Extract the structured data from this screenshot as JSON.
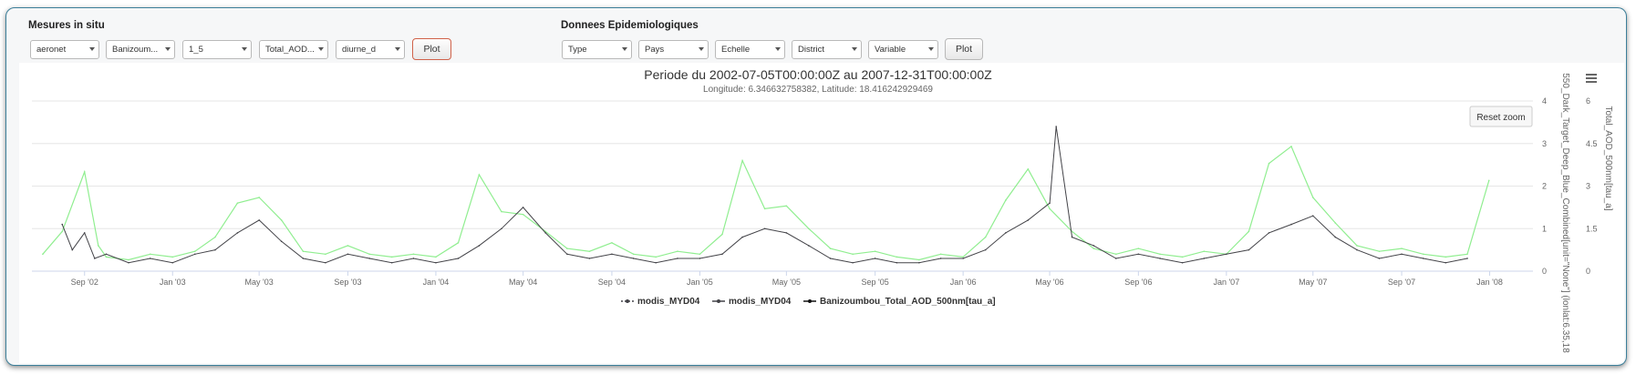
{
  "sections": {
    "left_title": "Mesures in situ",
    "right_title": "Donnees Epidemiologiques"
  },
  "left_controls": {
    "source": "aeronet",
    "site": "Banizoum...",
    "level": "1_5",
    "variable": "Total_AOD...",
    "frequency": "diurne_d",
    "plot_label": "Plot"
  },
  "right_controls": {
    "type": "Type",
    "pays": "Pays",
    "echelle": "Echelle",
    "district": "District",
    "variable": "Variable",
    "plot_label": "Plot"
  },
  "chart": {
    "menu_icon": "hamburger-menu-icon",
    "reset_zoom": "Reset zoom"
  },
  "colors": {
    "green_series": "#90ee90",
    "dark_series": "#434348",
    "border": "#3b7f9a"
  },
  "chart_data": {
    "type": "line",
    "title": "Periode du 2002-07-05T00:00:00Z au 2007-12-31T00:00:00Z",
    "subtitle": "Longitude: 6.346632758382, Latitude: 18.416242929469",
    "x_range": [
      "2002-07-05",
      "2007-12-31"
    ],
    "x_ticks": [
      "Sep '02",
      "Jan '03",
      "May '03",
      "Sep '03",
      "Jan '04",
      "May '04",
      "Sep '04",
      "Jan '05",
      "May '05",
      "Sep '05",
      "Jan '06",
      "May '06",
      "Sep '06",
      "Jan '07",
      "May '07",
      "Sep '07",
      "Jan '08"
    ],
    "y_left": {
      "ylim": [
        0,
        4
      ],
      "ticks": [
        "0",
        "1",
        "2",
        "3",
        "4"
      ],
      "label": "550_Dark_Target_Deep_Blue_Combined[unit=\"None\"] (lonlat:6.35,18"
    },
    "y_right": {
      "ylim": [
        0,
        6
      ],
      "ticks": [
        "0",
        "1.5",
        "3",
        "4.5",
        "6"
      ],
      "label": "Total_AOD_500nm[tau_a]"
    },
    "legend_position": "bottom-center",
    "series": [
      {
        "name": "modis_MYD04",
        "axis": "left",
        "color": "#434348",
        "x": [
          "2002-08-01",
          "2002-08-15",
          "2002-09-01",
          "2002-09-15",
          "2002-10-01",
          "2002-11-01",
          "2002-12-01",
          "2003-01-01",
          "2003-02-01",
          "2003-03-01",
          "2003-04-01",
          "2003-05-01",
          "2003-06-01",
          "2003-07-01",
          "2003-08-01",
          "2003-09-01",
          "2003-10-01",
          "2003-11-01",
          "2003-12-01",
          "2004-01-01",
          "2004-02-01",
          "2004-03-01",
          "2004-04-01",
          "2004-05-01",
          "2004-06-01",
          "2004-07-01",
          "2004-08-01",
          "2004-09-01",
          "2004-10-01",
          "2004-11-01",
          "2004-12-01",
          "2005-01-01",
          "2005-02-01",
          "2005-03-01",
          "2005-04-01",
          "2005-05-01",
          "2005-06-01",
          "2005-07-01",
          "2005-08-01",
          "2005-09-01",
          "2005-10-01",
          "2005-11-01",
          "2005-12-01",
          "2006-01-01",
          "2006-02-01",
          "2006-03-01",
          "2006-04-01",
          "2006-05-01",
          "2006-05-10",
          "2006-06-01",
          "2006-07-01",
          "2006-08-01",
          "2006-09-01",
          "2006-10-01",
          "2006-11-01",
          "2006-12-01",
          "2007-01-01",
          "2007-02-01",
          "2007-03-01",
          "2007-04-01",
          "2007-05-01",
          "2007-06-01",
          "2007-07-01",
          "2007-08-01",
          "2007-09-01",
          "2007-10-01",
          "2007-11-01",
          "2007-12-01"
        ],
        "values": [
          1.1,
          0.5,
          0.9,
          0.3,
          0.4,
          0.2,
          0.3,
          0.2,
          0.4,
          0.5,
          0.9,
          1.2,
          0.7,
          0.3,
          0.2,
          0.4,
          0.3,
          0.2,
          0.3,
          0.2,
          0.3,
          0.6,
          1.0,
          1.5,
          0.9,
          0.4,
          0.3,
          0.4,
          0.3,
          0.2,
          0.3,
          0.3,
          0.4,
          0.8,
          1.0,
          0.9,
          0.6,
          0.3,
          0.2,
          0.3,
          0.2,
          0.2,
          0.3,
          0.3,
          0.5,
          0.9,
          1.2,
          1.6,
          3.4,
          0.8,
          0.6,
          0.3,
          0.4,
          0.3,
          0.2,
          0.3,
          0.4,
          0.5,
          0.9,
          1.1,
          1.3,
          0.8,
          0.5,
          0.3,
          0.4,
          0.3,
          0.2,
          0.3
        ]
      },
      {
        "name": "modis_MYD04",
        "axis": "left",
        "color": "#434348",
        "x": [],
        "values": []
      },
      {
        "name": "Banizoumbou_Total_AOD_500nm[tau_a]",
        "axis": "right",
        "color": "#90ee90",
        "x": [
          "2002-07-05",
          "2002-08-01",
          "2002-09-01",
          "2002-09-20",
          "2002-10-01",
          "2002-11-01",
          "2002-12-01",
          "2003-01-01",
          "2003-02-01",
          "2003-03-01",
          "2003-04-01",
          "2003-05-01",
          "2003-06-01",
          "2003-07-01",
          "2003-08-01",
          "2003-09-01",
          "2003-10-01",
          "2003-11-01",
          "2003-12-01",
          "2004-01-01",
          "2004-02-01",
          "2004-03-01",
          "2004-04-01",
          "2004-05-01",
          "2004-06-01",
          "2004-07-01",
          "2004-08-01",
          "2004-09-01",
          "2004-10-01",
          "2004-11-01",
          "2004-12-01",
          "2005-01-01",
          "2005-02-01",
          "2005-03-01",
          "2005-04-01",
          "2005-05-01",
          "2005-06-01",
          "2005-07-01",
          "2005-08-01",
          "2005-09-01",
          "2005-10-01",
          "2005-11-01",
          "2005-12-01",
          "2006-01-01",
          "2006-02-01",
          "2006-03-01",
          "2006-04-01",
          "2006-05-01",
          "2006-06-01",
          "2006-07-01",
          "2006-08-01",
          "2006-09-01",
          "2006-10-01",
          "2006-11-01",
          "2006-12-01",
          "2007-01-01",
          "2007-02-01",
          "2007-03-01",
          "2007-04-01",
          "2007-05-01",
          "2007-06-01",
          "2007-07-01",
          "2007-08-01",
          "2007-09-01",
          "2007-10-01",
          "2007-11-01",
          "2007-12-01",
          "2007-12-31"
        ],
        "values": [
          0.6,
          1.4,
          3.5,
          0.9,
          0.5,
          0.4,
          0.6,
          0.5,
          0.7,
          1.2,
          2.4,
          2.6,
          1.8,
          0.7,
          0.6,
          0.9,
          0.6,
          0.5,
          0.6,
          0.5,
          1.0,
          3.4,
          2.1,
          2.0,
          1.4,
          0.8,
          0.7,
          1.0,
          0.6,
          0.5,
          0.7,
          0.6,
          1.3,
          3.9,
          2.2,
          2.3,
          1.5,
          0.8,
          0.6,
          0.7,
          0.5,
          0.4,
          0.6,
          0.5,
          1.2,
          2.5,
          3.6,
          2.2,
          1.4,
          0.8,
          0.6,
          0.8,
          0.6,
          0.5,
          0.7,
          0.6,
          1.4,
          3.8,
          4.4,
          2.6,
          1.7,
          0.9,
          0.7,
          0.8,
          0.6,
          0.5,
          0.6,
          3.2
        ]
      }
    ]
  }
}
